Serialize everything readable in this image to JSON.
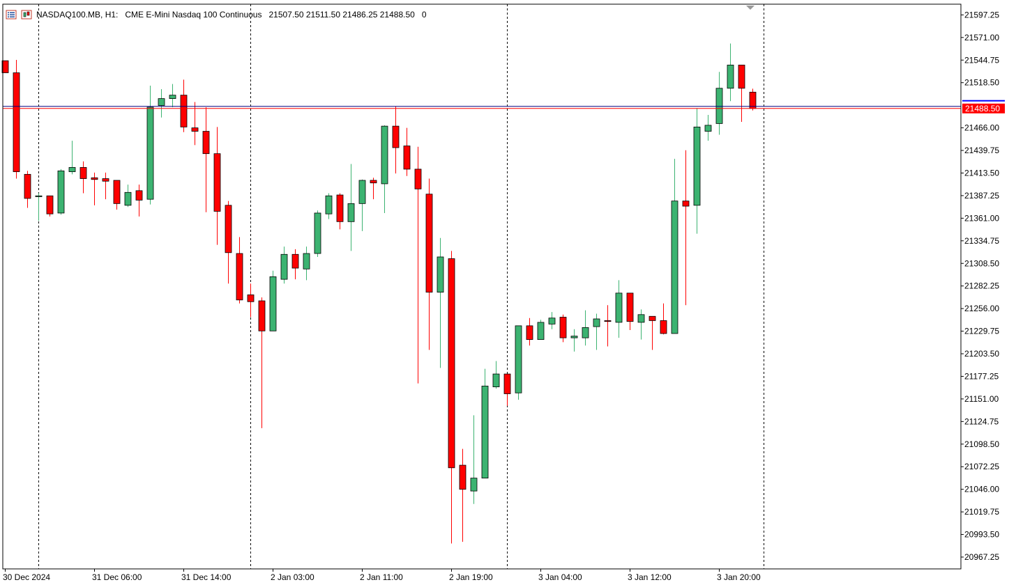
{
  "header": {
    "symbol": "NASDAQ100.MB, H1:",
    "description": "CME E-Mini Nasdaq 100 Continuous",
    "ohlc": "21507.50 21511.50 21486.25 21488.50",
    "volume": "0",
    "icons": [
      "chart-list-icon",
      "one-click-trading-icon"
    ]
  },
  "price_label": "21488.50",
  "colors": {
    "bull": "#3cb371",
    "bear": "#ff0000",
    "candle_outline": "#000000",
    "bid_line": "#ff0000",
    "ask_line": "#000080",
    "price_label_bg": "#ff0000",
    "ask_marker": "#0000ff"
  },
  "chart_data": {
    "type": "candlestick",
    "interval": "H1",
    "y_ticks": [
      "21597.25",
      "21571.00",
      "21544.75",
      "21518.50",
      "21492.25",
      "21466.00",
      "21439.75",
      "21413.50",
      "21387.25",
      "21361.00",
      "21334.75",
      "21308.50",
      "21282.25",
      "21256.00",
      "21229.75",
      "21203.50",
      "21177.25",
      "21151.00",
      "21124.75",
      "21098.50",
      "21072.25",
      "21046.00",
      "21019.75",
      "20993.50",
      "20967.25"
    ],
    "y_tick_skip": [
      "21492.25"
    ],
    "ylim": [
      20953.5,
      21609.7
    ],
    "x_labels": [
      "30 Dec 2024",
      "31 Dec 06:00",
      "31 Dec 14:00",
      "2 Jan 03:00",
      "2 Jan 11:00",
      "2 Jan 19:00",
      "3 Jan 04:00",
      "3 Jan 12:00",
      "3 Jan 20:00"
    ],
    "x_label_candle_index": [
      0,
      8,
      16,
      24,
      32,
      40,
      48,
      56,
      64
    ],
    "period_separators": [
      3,
      22,
      45,
      68
    ],
    "bid": 21488.5,
    "ask": 21491.0,
    "candles": [
      {
        "o": 21544,
        "h": 21544,
        "l": 21530,
        "c": 21530
      },
      {
        "o": 21530,
        "h": 21545,
        "l": 21407,
        "c": 21415
      },
      {
        "o": 21412,
        "h": 21416,
        "l": 21373,
        "c": 21384
      },
      {
        "o": 21386,
        "h": 21390,
        "l": 21358,
        "c": 21387
      },
      {
        "o": 21387,
        "h": 21387,
        "l": 21363,
        "c": 21366
      },
      {
        "o": 21367,
        "h": 21418,
        "l": 21365,
        "c": 21416
      },
      {
        "o": 21415,
        "h": 21451,
        "l": 21412,
        "c": 21420
      },
      {
        "o": 21420,
        "h": 21427,
        "l": 21390,
        "c": 21407
      },
      {
        "o": 21408,
        "h": 21414,
        "l": 21376,
        "c": 21406
      },
      {
        "o": 21407,
        "h": 21414,
        "l": 21383,
        "c": 21404
      },
      {
        "o": 21405,
        "h": 21405,
        "l": 21371,
        "c": 21378
      },
      {
        "o": 21376,
        "h": 21400,
        "l": 21374,
        "c": 21391
      },
      {
        "o": 21393,
        "h": 21400,
        "l": 21363,
        "c": 21382
      },
      {
        "o": 21383,
        "h": 21515,
        "l": 21377,
        "c": 21490
      },
      {
        "o": 21492,
        "h": 21511,
        "l": 21478,
        "c": 21500
      },
      {
        "o": 21500,
        "h": 21517,
        "l": 21490,
        "c": 21504
      },
      {
        "o": 21504,
        "h": 21522,
        "l": 21461,
        "c": 21467
      },
      {
        "o": 21466,
        "h": 21496,
        "l": 21446,
        "c": 21462
      },
      {
        "o": 21462,
        "h": 21490,
        "l": 21368,
        "c": 21436
      },
      {
        "o": 21436,
        "h": 21467,
        "l": 21330,
        "c": 21369
      },
      {
        "o": 21376,
        "h": 21381,
        "l": 21285,
        "c": 21321
      },
      {
        "o": 21320,
        "h": 21339,
        "l": 21262,
        "c": 21266
      },
      {
        "o": 21272,
        "h": 21285,
        "l": 21246,
        "c": 21264
      },
      {
        "o": 21265,
        "h": 21269,
        "l": 21117,
        "c": 21230
      },
      {
        "o": 21230,
        "h": 21300,
        "l": 21230,
        "c": 21293
      },
      {
        "o": 21290,
        "h": 21328,
        "l": 21285,
        "c": 21319
      },
      {
        "o": 21319,
        "h": 21325,
        "l": 21290,
        "c": 21303
      },
      {
        "o": 21302,
        "h": 21328,
        "l": 21289,
        "c": 21320
      },
      {
        "o": 21320,
        "h": 21370,
        "l": 21316,
        "c": 21367
      },
      {
        "o": 21366,
        "h": 21390,
        "l": 21360,
        "c": 21387
      },
      {
        "o": 21388,
        "h": 21390,
        "l": 21348,
        "c": 21357
      },
      {
        "o": 21357,
        "h": 21424,
        "l": 21323,
        "c": 21378
      },
      {
        "o": 21378,
        "h": 21406,
        "l": 21346,
        "c": 21405
      },
      {
        "o": 21405,
        "h": 21408,
        "l": 21383,
        "c": 21402
      },
      {
        "o": 21401,
        "h": 21469,
        "l": 21367,
        "c": 21468
      },
      {
        "o": 21468,
        "h": 21491,
        "l": 21413,
        "c": 21443
      },
      {
        "o": 21445,
        "h": 21466,
        "l": 21410,
        "c": 21418
      },
      {
        "o": 21418,
        "h": 21444,
        "l": 21169,
        "c": 21395
      },
      {
        "o": 21389,
        "h": 21407,
        "l": 21208,
        "c": 21275
      },
      {
        "o": 21275,
        "h": 21338,
        "l": 21187,
        "c": 21316
      },
      {
        "o": 21314,
        "h": 21323,
        "l": 20983,
        "c": 21071
      },
      {
        "o": 21074,
        "h": 21093,
        "l": 20985,
        "c": 21046
      },
      {
        "o": 21044,
        "h": 21132,
        "l": 21029,
        "c": 21059
      },
      {
        "o": 21059,
        "h": 21186,
        "l": 21059,
        "c": 21166
      },
      {
        "o": 21165,
        "h": 21195,
        "l": 21163,
        "c": 21180
      },
      {
        "o": 21180,
        "h": 21180,
        "l": 21143,
        "c": 21157
      },
      {
        "o": 21158,
        "h": 21236,
        "l": 21150,
        "c": 21236
      },
      {
        "o": 21236,
        "h": 21245,
        "l": 21213,
        "c": 21220
      },
      {
        "o": 21220,
        "h": 21243,
        "l": 21221,
        "c": 21240
      },
      {
        "o": 21238,
        "h": 21252,
        "l": 21232,
        "c": 21245
      },
      {
        "o": 21246,
        "h": 21249,
        "l": 21217,
        "c": 21222
      },
      {
        "o": 21222,
        "h": 21232,
        "l": 21206,
        "c": 21224
      },
      {
        "o": 21222,
        "h": 21254,
        "l": 21213,
        "c": 21234
      },
      {
        "o": 21235,
        "h": 21250,
        "l": 21208,
        "c": 21244
      },
      {
        "o": 21242,
        "h": 21260,
        "l": 21212,
        "c": 21241
      },
      {
        "o": 21240,
        "h": 21289,
        "l": 21222,
        "c": 21274
      },
      {
        "o": 21274,
        "h": 21272,
        "l": 21231,
        "c": 21241
      },
      {
        "o": 21240,
        "h": 21255,
        "l": 21220,
        "c": 21249
      },
      {
        "o": 21247,
        "h": 21247,
        "l": 21208,
        "c": 21242
      },
      {
        "o": 21242,
        "h": 21262,
        "l": 21226,
        "c": 21227
      },
      {
        "o": 21227,
        "h": 21430,
        "l": 21227,
        "c": 21381
      },
      {
        "o": 21381,
        "h": 21440,
        "l": 21260,
        "c": 21375
      },
      {
        "o": 21376,
        "h": 21489,
        "l": 21343,
        "c": 21467
      },
      {
        "o": 21462,
        "h": 21481,
        "l": 21451,
        "c": 21469
      },
      {
        "o": 21471,
        "h": 21531,
        "l": 21458,
        "c": 21512
      },
      {
        "o": 21512,
        "h": 21564,
        "l": 21497,
        "c": 21539
      },
      {
        "o": 21539,
        "h": 21539,
        "l": 21473,
        "c": 21512
      },
      {
        "o": 21507.5,
        "h": 21511.5,
        "l": 21486.25,
        "c": 21488.5
      }
    ]
  }
}
